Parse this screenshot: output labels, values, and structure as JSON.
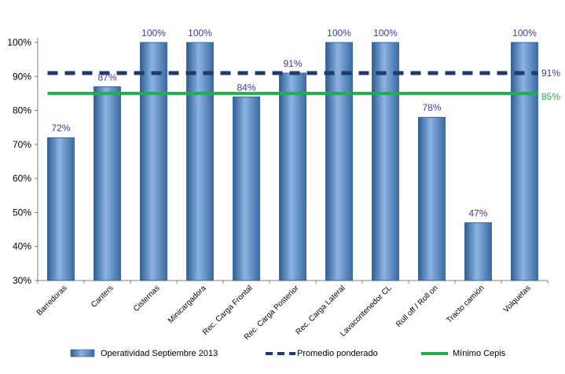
{
  "chart_data": {
    "type": "bar",
    "categories": [
      "Barredoras",
      "Canters",
      "Cisternas",
      "Minicargadora",
      "Rec. Carga Frontal",
      "Rec. Carga Posterior",
      "Rec. Carga Lateral",
      "Lavacontenedor CL",
      "Roll off / Roll on",
      "Tracto camión",
      "Volquetas"
    ],
    "series": [
      {
        "name": "Operatividad Septiembre 2013",
        "values": [
          72,
          87,
          100,
          100,
          84,
          91,
          100,
          100,
          78,
          47,
          100
        ]
      }
    ],
    "data_labels": [
      "72%",
      "87%",
      "100%",
      "100%",
      "84%",
      "91%",
      "100%",
      "100%",
      "78%",
      "47%",
      "100%"
    ],
    "reference_lines": [
      {
        "name": "Promedio ponderado",
        "value": 91,
        "label": "91%",
        "style": "dashed",
        "color": "#1f3b6b"
      },
      {
        "name": "Mínimo Cepis",
        "value": 85,
        "label": "85%",
        "style": "solid",
        "color": "#1fb04b"
      }
    ],
    "y_ticks": [
      "30%",
      "40%",
      "50%",
      "60%",
      "70%",
      "80%",
      "90%",
      "100%"
    ],
    "y_tick_values": [
      30,
      40,
      50,
      60,
      70,
      80,
      90,
      100
    ],
    "ylim": [
      30,
      100
    ],
    "grid": false,
    "legend_position": "bottom",
    "colors": {
      "bar_fill": "#4f81bd",
      "bar_light": "#8eb4e3",
      "bar_dark": "#2c5a8e",
      "average_line": "#1f3b6b",
      "minimum_line": "#1fb04b",
      "data_label": "#3b3b9a",
      "minimum_label": "#1fb04b"
    }
  }
}
